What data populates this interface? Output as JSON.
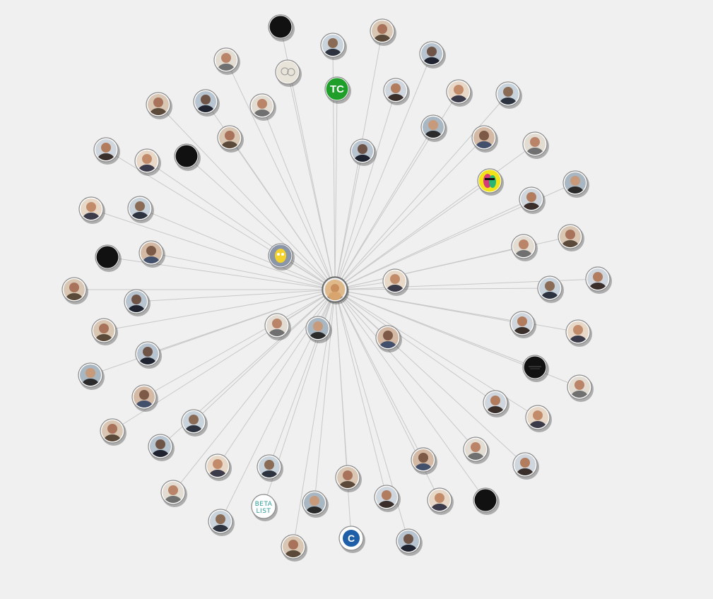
{
  "graph": {
    "colors": {
      "background": "#f0f0f0",
      "edge": "#c8c8c8",
      "ring": "#8a8a8a"
    },
    "center": {
      "id": "center-user"
    },
    "nodes": [
      {
        "id": "n1",
        "kind": "blank"
      },
      {
        "id": "n2",
        "kind": "photo"
      },
      {
        "id": "n3",
        "kind": "photo"
      },
      {
        "id": "n4",
        "kind": "photo"
      },
      {
        "id": "n5",
        "kind": "photo"
      },
      {
        "id": "n6",
        "kind": "sketch"
      },
      {
        "id": "n7",
        "kind": "logo",
        "label": "TC",
        "color": "#1f9e2a"
      },
      {
        "id": "n8",
        "kind": "photo"
      },
      {
        "id": "n9",
        "kind": "photo"
      },
      {
        "id": "n10",
        "kind": "photo"
      },
      {
        "id": "n11",
        "kind": "photo"
      },
      {
        "id": "n12",
        "kind": "photo"
      },
      {
        "id": "n13",
        "kind": "photo"
      },
      {
        "id": "n14",
        "kind": "photo"
      },
      {
        "id": "n15",
        "kind": "photo"
      },
      {
        "id": "n16",
        "kind": "photo"
      },
      {
        "id": "n17",
        "kind": "photo"
      },
      {
        "id": "n18",
        "kind": "blank"
      },
      {
        "id": "n19",
        "kind": "photo"
      },
      {
        "id": "n20",
        "kind": "photo"
      },
      {
        "id": "n21",
        "kind": "photo"
      },
      {
        "id": "n22",
        "kind": "photo"
      },
      {
        "id": "n23",
        "kind": "art"
      },
      {
        "id": "n24",
        "kind": "photo"
      },
      {
        "id": "n25",
        "kind": "photo"
      },
      {
        "id": "n26",
        "kind": "photo"
      },
      {
        "id": "n27",
        "kind": "photo"
      },
      {
        "id": "n28",
        "kind": "cartoon"
      },
      {
        "id": "n29",
        "kind": "photo"
      },
      {
        "id": "n30",
        "kind": "blank"
      },
      {
        "id": "n31",
        "kind": "photo"
      },
      {
        "id": "n32",
        "kind": "photo"
      },
      {
        "id": "n33",
        "kind": "photo"
      },
      {
        "id": "n34",
        "kind": "photo"
      },
      {
        "id": "n35",
        "kind": "photo"
      },
      {
        "id": "n36",
        "kind": "photo"
      },
      {
        "id": "n37",
        "kind": "photo"
      },
      {
        "id": "n38",
        "kind": "photo"
      },
      {
        "id": "n39",
        "kind": "photo"
      },
      {
        "id": "n40",
        "kind": "photo"
      },
      {
        "id": "n41",
        "kind": "photo"
      },
      {
        "id": "n42",
        "kind": "dark"
      },
      {
        "id": "n43",
        "kind": "photo"
      },
      {
        "id": "n44",
        "kind": "photo"
      },
      {
        "id": "n45",
        "kind": "photo"
      },
      {
        "id": "n46",
        "kind": "photo"
      },
      {
        "id": "n47",
        "kind": "photo"
      },
      {
        "id": "n48",
        "kind": "photo"
      },
      {
        "id": "n49",
        "kind": "photo"
      },
      {
        "id": "n50",
        "kind": "photo"
      },
      {
        "id": "n51",
        "kind": "photo"
      },
      {
        "id": "n52",
        "kind": "photo"
      },
      {
        "id": "n53",
        "kind": "photo"
      },
      {
        "id": "n54",
        "kind": "blank"
      },
      {
        "id": "n55",
        "kind": "photo"
      },
      {
        "id": "n56",
        "kind": "photo"
      },
      {
        "id": "n57",
        "kind": "photo"
      },
      {
        "id": "n58",
        "kind": "photo"
      },
      {
        "id": "n59",
        "kind": "photo"
      },
      {
        "id": "n60",
        "kind": "logo-text",
        "label": "BETA LIST"
      },
      {
        "id": "n61",
        "kind": "photo"
      },
      {
        "id": "n62",
        "kind": "photo"
      },
      {
        "id": "n63",
        "kind": "logo",
        "label": "C",
        "color": "#1f5fa8"
      },
      {
        "id": "n64",
        "kind": "photo"
      },
      {
        "id": "n65",
        "kind": "photo"
      },
      {
        "id": "n66",
        "kind": "photo"
      },
      {
        "id": "n67",
        "kind": "photo"
      },
      {
        "id": "n68",
        "kind": "photo"
      },
      {
        "id": "n69",
        "kind": "photo"
      }
    ]
  }
}
